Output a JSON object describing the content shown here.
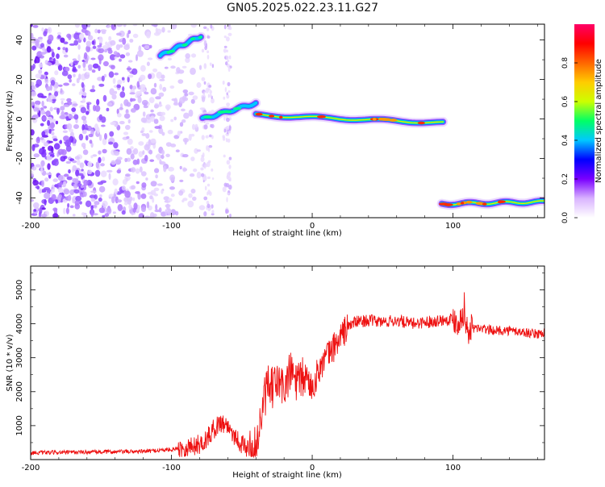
{
  "title": "GN05.2025.022.23.11.G27",
  "chart_data": [
    {
      "type": "heatmap",
      "xlabel": "Height of straight line (km)",
      "ylabel": "Frequency (Hz)",
      "xlim": [
        -200,
        165
      ],
      "ylim": [
        -50,
        48
      ],
      "xticks": [
        -200,
        -100,
        0,
        100
      ],
      "yticks": [
        -40,
        -20,
        0,
        20,
        40
      ],
      "colorbar": {
        "label": "Normalized spectral amplitude",
        "range": [
          0,
          1
        ],
        "ticks": [
          "0.0",
          "0.2",
          "0.4",
          "0.6",
          "0.8"
        ],
        "colors": [
          "#ffffff",
          "#d9b3ff",
          "#7a00ff",
          "#0000ff",
          "#00c8ff",
          "#00ff66",
          "#ccff00",
          "#ffcc00",
          "#ff6600",
          "#ff0000",
          "#ff0066"
        ]
      },
      "features": [
        {
          "x": [
            -108,
            -79
          ],
          "freq_start": 32,
          "freq_end": 42,
          "peak": 0.45
        },
        {
          "x": [
            -78,
            -40
          ],
          "freq_start": 0,
          "freq_end": 8,
          "peak": 0.4
        },
        {
          "x": [
            -40,
            93
          ],
          "freq_start": 2,
          "freq_end": -2,
          "peak": 0.9
        },
        {
          "x": [
            92,
            165
          ],
          "freq_start": -43,
          "freq_end": -42,
          "peak": 0.85
        }
      ]
    },
    {
      "type": "line",
      "xlabel": "Height of straight line (km)",
      "ylabel": "SNR (10 * v/v)",
      "xlim": [
        -200,
        165
      ],
      "ylim": [
        0,
        5700
      ],
      "xticks": [
        -200,
        -100,
        0,
        100
      ],
      "yticks": [
        1000,
        2000,
        3000,
        4000,
        5000
      ],
      "series": [
        {
          "color": "#ee1111",
          "x": [
            -200,
            -180,
            -160,
            -140,
            -120,
            -100,
            -90,
            -80,
            -75,
            -70,
            -65,
            -60,
            -55,
            -50,
            -45,
            -40,
            -35,
            -32,
            -30,
            -25,
            -20,
            -15,
            -10,
            -5,
            0,
            5,
            10,
            15,
            20,
            25,
            30,
            40,
            50,
            60,
            70,
            80,
            90,
            100,
            105,
            108,
            110,
            115,
            120,
            130,
            140,
            150,
            160,
            165
          ],
          "y": [
            200,
            210,
            220,
            230,
            240,
            300,
            350,
            450,
            600,
            900,
            1100,
            1000,
            700,
            450,
            300,
            350,
            1500,
            2200,
            2000,
            2300,
            2100,
            2600,
            2200,
            2500,
            2100,
            2700,
            3000,
            3300,
            3600,
            3900,
            4050,
            4100,
            4050,
            4100,
            4000,
            4050,
            4100,
            4150,
            4050,
            4500,
            3800,
            3900,
            3850,
            3800,
            3800,
            3750,
            3700,
            3750
          ]
        }
      ]
    }
  ]
}
